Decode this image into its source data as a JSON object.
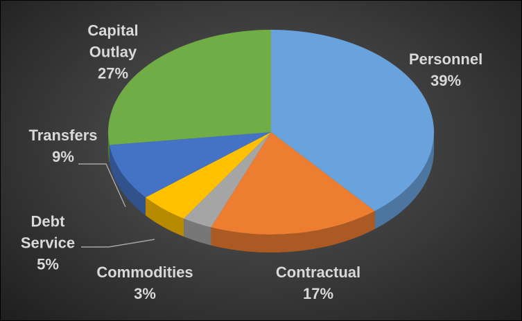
{
  "chart_data": {
    "type": "pie",
    "categories": [
      "Personnel",
      "Contractual",
      "Commodities",
      "Debt Service",
      "Transfers",
      "Capital Outlay"
    ],
    "values": [
      39,
      17,
      3,
      5,
      9,
      27
    ],
    "value_labels": [
      "39%",
      "17%",
      "3%",
      "5%",
      "9%",
      "27%"
    ],
    "colors": [
      "#69a3dd",
      "#ed7d31",
      "#a5a5a5",
      "#ffc000",
      "#4472c4",
      "#70ad47"
    ]
  }
}
